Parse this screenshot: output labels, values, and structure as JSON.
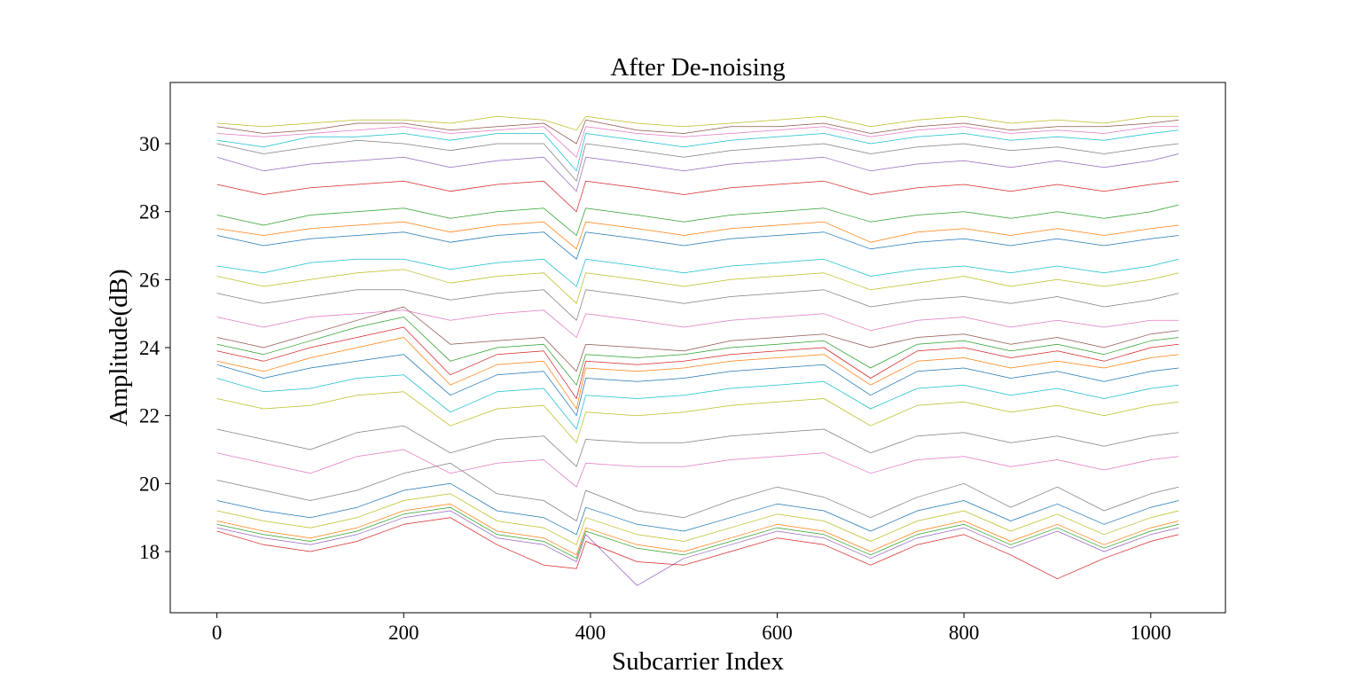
{
  "chart_data": {
    "type": "line",
    "title": "After De-noising",
    "xlabel": "Subcarrier Index",
    "ylabel": "Amplitude(dB)",
    "xlim": [
      -50,
      1080
    ],
    "ylim": [
      16.2,
      31.8
    ],
    "x_ticks": [
      0,
      200,
      400,
      600,
      800,
      1000
    ],
    "y_ticks": [
      18,
      20,
      22,
      24,
      26,
      28,
      30
    ],
    "x_ticklabels": [
      "0",
      "200",
      "400",
      "600",
      "800",
      "1000"
    ],
    "y_ticklabels": [
      "18",
      "20",
      "22",
      "24",
      "26",
      "28",
      "30"
    ],
    "grid": false,
    "legend": "none",
    "x": [
      0,
      50,
      100,
      150,
      200,
      250,
      300,
      350,
      385,
      395,
      450,
      500,
      550,
      600,
      650,
      700,
      750,
      800,
      850,
      900,
      950,
      1000,
      1030
    ],
    "series": [
      {
        "color": "#bcbd22",
        "values": [
          30.6,
          30.5,
          30.6,
          30.7,
          30.7,
          30.6,
          30.8,
          30.7,
          30.4,
          30.8,
          30.6,
          30.5,
          30.6,
          30.7,
          30.8,
          30.5,
          30.7,
          30.8,
          30.6,
          30.7,
          30.6,
          30.8,
          30.8
        ]
      },
      {
        "color": "#8c564b",
        "values": [
          30.5,
          30.3,
          30.4,
          30.6,
          30.6,
          30.4,
          30.5,
          30.6,
          30.0,
          30.7,
          30.4,
          30.3,
          30.5,
          30.5,
          30.6,
          30.3,
          30.5,
          30.6,
          30.4,
          30.5,
          30.5,
          30.6,
          30.7
        ]
      },
      {
        "color": "#e377c2",
        "values": [
          30.3,
          30.2,
          30.3,
          30.4,
          30.5,
          30.3,
          30.4,
          30.5,
          29.6,
          30.5,
          30.3,
          30.2,
          30.3,
          30.4,
          30.5,
          30.2,
          30.4,
          30.5,
          30.3,
          30.4,
          30.3,
          30.5,
          30.5
        ]
      },
      {
        "color": "#17becf",
        "values": [
          30.1,
          29.9,
          30.2,
          30.2,
          30.3,
          30.1,
          30.3,
          30.3,
          29.2,
          30.3,
          30.1,
          29.9,
          30.1,
          30.2,
          30.3,
          30.0,
          30.2,
          30.3,
          30.1,
          30.2,
          30.1,
          30.3,
          30.4
        ]
      },
      {
        "color": "#7f7f7f",
        "values": [
          30.0,
          29.7,
          29.9,
          30.1,
          30.0,
          29.8,
          30.0,
          30.0,
          28.9,
          30.0,
          29.8,
          29.6,
          29.8,
          29.9,
          30.0,
          29.7,
          29.9,
          30.0,
          29.8,
          29.9,
          29.7,
          29.9,
          30.0
        ]
      },
      {
        "color": "#9467bd",
        "values": [
          29.6,
          29.2,
          29.4,
          29.5,
          29.6,
          29.3,
          29.5,
          29.6,
          28.6,
          29.6,
          29.4,
          29.2,
          29.4,
          29.5,
          29.6,
          29.2,
          29.4,
          29.5,
          29.3,
          29.5,
          29.3,
          29.5,
          29.7
        ]
      },
      {
        "color": "#d62728",
        "values": [
          28.8,
          28.5,
          28.7,
          28.8,
          28.9,
          28.6,
          28.8,
          28.9,
          28.0,
          28.9,
          28.7,
          28.5,
          28.7,
          28.8,
          28.9,
          28.5,
          28.7,
          28.8,
          28.6,
          28.8,
          28.6,
          28.8,
          28.9
        ]
      },
      {
        "color": "#2ca02c",
        "values": [
          27.9,
          27.6,
          27.9,
          28.0,
          28.1,
          27.8,
          28.0,
          28.1,
          27.3,
          28.1,
          27.9,
          27.7,
          27.9,
          28.0,
          28.1,
          27.7,
          27.9,
          28.0,
          27.8,
          28.0,
          27.8,
          28.0,
          28.2
        ]
      },
      {
        "color": "#ff7f0e",
        "values": [
          27.5,
          27.3,
          27.5,
          27.6,
          27.7,
          27.4,
          27.6,
          27.7,
          26.9,
          27.7,
          27.5,
          27.3,
          27.5,
          27.6,
          27.7,
          27.1,
          27.4,
          27.5,
          27.3,
          27.5,
          27.3,
          27.5,
          27.6
        ]
      },
      {
        "color": "#1f77b4",
        "values": [
          27.3,
          27.0,
          27.2,
          27.3,
          27.4,
          27.1,
          27.3,
          27.4,
          26.6,
          27.4,
          27.2,
          27.0,
          27.2,
          27.3,
          27.4,
          26.9,
          27.1,
          27.2,
          27.0,
          27.2,
          27.0,
          27.2,
          27.3
        ]
      },
      {
        "color": "#17becf",
        "values": [
          26.4,
          26.2,
          26.5,
          26.6,
          26.6,
          26.3,
          26.5,
          26.6,
          25.8,
          26.6,
          26.4,
          26.2,
          26.4,
          26.5,
          26.6,
          26.1,
          26.3,
          26.4,
          26.2,
          26.4,
          26.2,
          26.4,
          26.6
        ]
      },
      {
        "color": "#bcbd22",
        "values": [
          26.1,
          25.8,
          26.0,
          26.2,
          26.3,
          25.9,
          26.1,
          26.2,
          25.3,
          26.2,
          26.0,
          25.8,
          26.0,
          26.1,
          26.2,
          25.7,
          25.9,
          26.1,
          25.8,
          26.0,
          25.8,
          26.0,
          26.2
        ]
      },
      {
        "color": "#7f7f7f",
        "values": [
          25.6,
          25.3,
          25.5,
          25.7,
          25.7,
          25.4,
          25.6,
          25.7,
          24.8,
          25.7,
          25.5,
          25.3,
          25.5,
          25.6,
          25.7,
          25.2,
          25.4,
          25.5,
          25.3,
          25.5,
          25.2,
          25.4,
          25.6
        ]
      },
      {
        "color": "#e377c2",
        "values": [
          24.9,
          24.6,
          24.9,
          25.0,
          25.1,
          24.8,
          25.0,
          25.1,
          24.3,
          25.0,
          24.8,
          24.6,
          24.8,
          24.9,
          25.0,
          24.5,
          24.8,
          24.9,
          24.6,
          24.8,
          24.6,
          24.8,
          24.8
        ]
      },
      {
        "color": "#8c564b",
        "values": [
          24.3,
          24.0,
          24.4,
          24.8,
          25.2,
          24.1,
          24.2,
          24.3,
          23.3,
          24.1,
          24.0,
          23.9,
          24.2,
          24.3,
          24.4,
          24.0,
          24.3,
          24.4,
          24.1,
          24.3,
          24.0,
          24.4,
          24.5
        ]
      },
      {
        "color": "#2ca02c",
        "values": [
          24.1,
          23.8,
          24.2,
          24.6,
          24.9,
          23.6,
          24.0,
          24.1,
          22.9,
          23.8,
          23.7,
          23.8,
          24.0,
          24.1,
          24.2,
          23.4,
          24.1,
          24.2,
          23.9,
          24.1,
          23.8,
          24.2,
          24.3
        ]
      },
      {
        "color": "#d62728",
        "values": [
          23.9,
          23.6,
          24.0,
          24.3,
          24.6,
          23.2,
          23.8,
          23.9,
          22.5,
          23.6,
          23.5,
          23.6,
          23.8,
          23.9,
          24.0,
          23.1,
          23.9,
          24.0,
          23.7,
          23.9,
          23.6,
          24.0,
          24.1
        ]
      },
      {
        "color": "#ff7f0e",
        "values": [
          23.6,
          23.3,
          23.7,
          24.0,
          24.3,
          22.9,
          23.5,
          23.6,
          22.2,
          23.4,
          23.3,
          23.4,
          23.6,
          23.7,
          23.8,
          22.9,
          23.6,
          23.7,
          23.4,
          23.6,
          23.4,
          23.7,
          23.8
        ]
      },
      {
        "color": "#1f77b4",
        "values": [
          23.5,
          23.1,
          23.4,
          23.6,
          23.8,
          22.6,
          23.2,
          23.3,
          22.0,
          23.1,
          23.0,
          23.1,
          23.3,
          23.4,
          23.5,
          22.6,
          23.3,
          23.4,
          23.1,
          23.3,
          23.0,
          23.3,
          23.4
        ]
      },
      {
        "color": "#17becf",
        "values": [
          23.1,
          22.7,
          22.8,
          23.1,
          23.2,
          22.1,
          22.7,
          22.8,
          21.6,
          22.6,
          22.5,
          22.6,
          22.8,
          22.9,
          23.0,
          22.2,
          22.8,
          22.9,
          22.6,
          22.8,
          22.5,
          22.8,
          22.9
        ]
      },
      {
        "color": "#bcbd22",
        "values": [
          22.5,
          22.2,
          22.3,
          22.6,
          22.7,
          21.7,
          22.2,
          22.3,
          21.2,
          22.1,
          22.0,
          22.1,
          22.3,
          22.4,
          22.5,
          21.7,
          22.3,
          22.4,
          22.1,
          22.3,
          22.0,
          22.3,
          22.4
        ]
      },
      {
        "color": "#7f7f7f",
        "values": [
          21.6,
          21.3,
          21.0,
          21.5,
          21.7,
          20.9,
          21.3,
          21.4,
          20.5,
          21.3,
          21.2,
          21.2,
          21.4,
          21.5,
          21.6,
          20.9,
          21.4,
          21.5,
          21.2,
          21.4,
          21.1,
          21.4,
          21.5
        ]
      },
      {
        "color": "#e377c2",
        "values": [
          20.9,
          20.6,
          20.3,
          20.8,
          21.0,
          20.3,
          20.6,
          20.7,
          19.9,
          20.6,
          20.5,
          20.5,
          20.7,
          20.8,
          20.9,
          20.3,
          20.7,
          20.8,
          20.5,
          20.7,
          20.4,
          20.7,
          20.8
        ]
      },
      {
        "color": "#7f7f7f",
        "values": [
          20.1,
          19.8,
          19.5,
          19.8,
          20.3,
          20.6,
          19.7,
          19.5,
          18.9,
          19.8,
          19.2,
          19.0,
          19.5,
          19.9,
          19.6,
          19.0,
          19.6,
          20.0,
          19.3,
          19.9,
          19.2,
          19.7,
          19.9
        ]
      },
      {
        "color": "#1f77b4",
        "values": [
          19.5,
          19.2,
          19.0,
          19.3,
          19.8,
          20.0,
          19.2,
          19.0,
          18.5,
          19.3,
          18.8,
          18.6,
          19.0,
          19.4,
          19.2,
          18.6,
          19.2,
          19.5,
          18.9,
          19.4,
          18.8,
          19.3,
          19.5
        ]
      },
      {
        "color": "#bcbd22",
        "values": [
          19.2,
          18.9,
          18.7,
          19.0,
          19.5,
          19.7,
          18.9,
          18.7,
          18.2,
          19.0,
          18.5,
          18.3,
          18.7,
          19.1,
          18.9,
          18.3,
          18.9,
          19.2,
          18.6,
          19.1,
          18.5,
          19.0,
          19.2
        ]
      },
      {
        "color": "#ff7f0e",
        "values": [
          18.9,
          18.6,
          18.4,
          18.7,
          19.2,
          19.4,
          18.6,
          18.4,
          17.9,
          18.7,
          18.2,
          18.0,
          18.4,
          18.8,
          18.6,
          18.0,
          18.6,
          18.9,
          18.3,
          18.8,
          18.2,
          18.7,
          18.9
        ]
      },
      {
        "color": "#2ca02c",
        "values": [
          18.8,
          18.5,
          18.3,
          18.6,
          19.1,
          19.3,
          18.5,
          18.3,
          17.8,
          18.6,
          18.1,
          17.9,
          18.3,
          18.7,
          18.5,
          17.9,
          18.5,
          18.8,
          18.2,
          18.7,
          18.1,
          18.6,
          18.8
        ]
      },
      {
        "color": "#9467bd",
        "values": [
          18.7,
          18.4,
          18.2,
          18.5,
          19.0,
          19.2,
          18.4,
          18.2,
          17.7,
          18.5,
          17.0,
          17.8,
          18.2,
          18.6,
          18.4,
          17.8,
          18.4,
          18.7,
          18.1,
          18.6,
          18.0,
          18.5,
          18.7
        ]
      },
      {
        "color": "#d62728",
        "values": [
          18.6,
          18.2,
          18.0,
          18.3,
          18.8,
          19.0,
          18.2,
          17.6,
          17.5,
          18.3,
          17.7,
          17.6,
          18.0,
          18.4,
          18.2,
          17.6,
          18.2,
          18.5,
          17.9,
          17.2,
          17.8,
          18.3,
          18.5
        ]
      }
    ]
  }
}
